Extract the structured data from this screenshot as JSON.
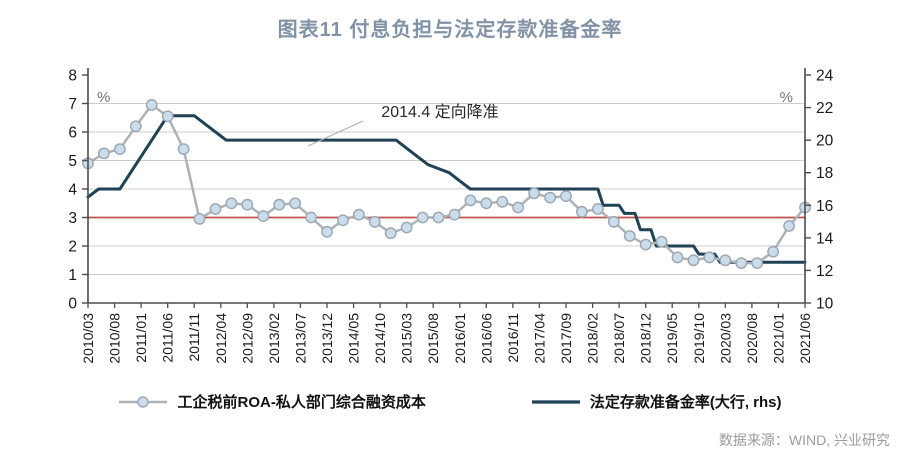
{
  "title": "图表11 付息负担与法定存款准备金率",
  "source": "数据来源：WIND, 兴业研究",
  "colors": {
    "title": "#8292a6",
    "source": "#9c9c9c",
    "axis": "#4d4d4d",
    "grid": "#cccccc",
    "tick_text": "#1a1a1a",
    "unit_text": "#757575",
    "reference": "#c0504d",
    "roa_line": "#adb2b7",
    "roa_marker_fill": "#cbdcec",
    "roa_marker_stroke": "#9ba6b0",
    "rrr_line": "#1f4254",
    "annotation_text": "#2a2a2a",
    "leader_line": "#b3b3b3",
    "legend_text": "#111111"
  },
  "chart_data": {
    "type": "line",
    "title": "图表11 付息负担与法定存款准备金率",
    "left_axis": {
      "unit": "%",
      "min": 0,
      "max": 8,
      "step": 1
    },
    "right_axis": {
      "unit": "%",
      "min": 10,
      "max": 24,
      "step": 2
    },
    "x_total_months": 135,
    "x_tick_interval_months": 5,
    "x_tick_labels": [
      "2010/03",
      "2010/08",
      "2011/01",
      "2011/06",
      "2011/11",
      "2012/04",
      "2012/09",
      "2013/02",
      "2013/07",
      "2013/12",
      "2014/05",
      "2014/10",
      "2015/03",
      "2015/08",
      "2016/01",
      "2016/06",
      "2016/11",
      "2017/04",
      "2017/09",
      "2018/02",
      "2018/07",
      "2018/12",
      "2019/05",
      "2019/10",
      "2020/03",
      "2020/08",
      "2021/01",
      "2021/06"
    ],
    "grid": "horizontal-only",
    "legend_position": "bottom",
    "reference_line": {
      "axis": "left",
      "value": 3
    },
    "annotation": {
      "text": "2014.4 定向降准"
    },
    "series": [
      {
        "name": "工企税前ROA-私人部门综合融资成本",
        "axis": "left",
        "style": "line-marker",
        "start_label": "2010/03",
        "interval_months": 3,
        "values": [
          4.9,
          5.25,
          5.4,
          6.2,
          6.95,
          6.55,
          5.4,
          2.95,
          3.3,
          3.5,
          3.45,
          3.05,
          3.45,
          3.5,
          3.0,
          2.5,
          2.9,
          3.1,
          2.85,
          2.45,
          2.65,
          3.0,
          3.0,
          3.1,
          3.6,
          3.5,
          3.55,
          3.35,
          3.85,
          3.7,
          3.75,
          3.2,
          3.3,
          2.85,
          2.35,
          2.05,
          2.15,
          1.6,
          1.5,
          1.6,
          1.5,
          1.4,
          1.4,
          1.8,
          2.7,
          3.35
        ]
      },
      {
        "name": "法定存款准备金率(大行, rhs)",
        "axis": "right",
        "style": "line",
        "points_month_value": [
          [
            0,
            16.5
          ],
          [
            2,
            17
          ],
          [
            6,
            17
          ],
          [
            15,
            21.5
          ],
          [
            20,
            21.5
          ],
          [
            26,
            20
          ],
          [
            58,
            20
          ],
          [
            60,
            19.5
          ],
          [
            64,
            18.5
          ],
          [
            68,
            18
          ],
          [
            70,
            17.5
          ],
          [
            72,
            17
          ],
          [
            96,
            17
          ],
          [
            97,
            16
          ],
          [
            100,
            16
          ],
          [
            101,
            15.5
          ],
          [
            103,
            15.5
          ],
          [
            104,
            14.5
          ],
          [
            106,
            14.5
          ],
          [
            107,
            13.5
          ],
          [
            114,
            13.5
          ],
          [
            115,
            13
          ],
          [
            118,
            13
          ],
          [
            119,
            12.5
          ],
          [
            135,
            12.5
          ]
        ]
      }
    ]
  }
}
